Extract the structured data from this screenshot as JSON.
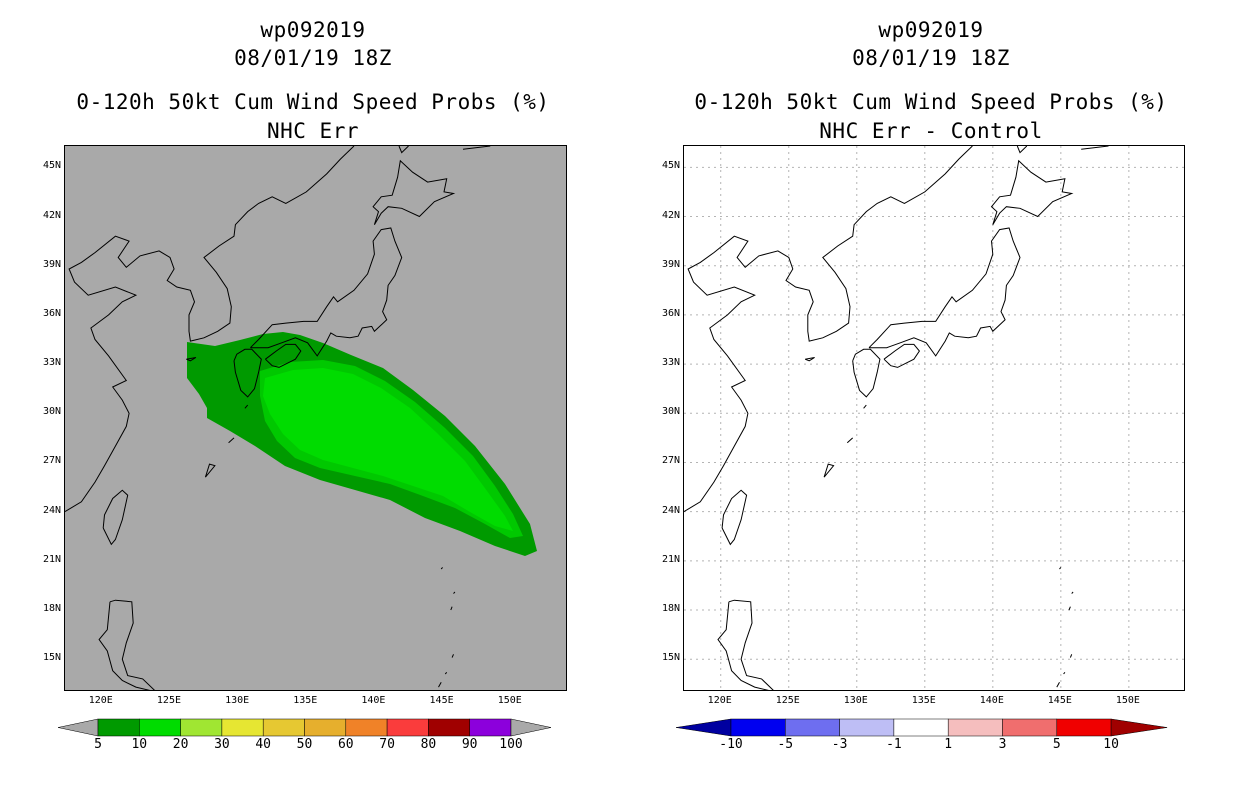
{
  "left_panel": {
    "title_line1": "wp092019",
    "title_line2": "08/01/19 18Z",
    "title_line3": "0-120h 50kt Cum Wind Speed Probs (%)",
    "title_line4": "NHC Err",
    "background_color": "#a9a9a9",
    "colorbar_labels": [
      "5",
      "10",
      "20",
      "30",
      "40",
      "50",
      "60",
      "70",
      "80",
      "90",
      "100"
    ],
    "colorbar_colors": [
      "#009a00",
      "#00dc00",
      "#a0e632",
      "#e6e632",
      "#e6c832",
      "#e6af2d",
      "#f08228",
      "#fa3c3c",
      "#a00000",
      "#8c00dc"
    ],
    "probability_bands": [
      "5-10%",
      "10-20%"
    ]
  },
  "right_panel": {
    "title_line1": "wp092019",
    "title_line2": "08/01/19 18Z",
    "title_line3": "0-120h 50kt Cum Wind Speed Probs (%)",
    "title_line4": "NHC Err - Control",
    "background_color": "#ffffff",
    "colorbar_labels": [
      "-10",
      "-5",
      "-3",
      "-1",
      "1",
      "3",
      "5",
      "10"
    ],
    "colorbar_colors": [
      "#0000a0",
      "#0000f0",
      "#6e6ef0",
      "#bebef5",
      "#ffffff",
      "#f5bebe",
      "#f06e6e",
      "#f00000",
      "#a00000"
    ]
  },
  "lat_labels": [
    "45N",
    "42N",
    "39N",
    "36N",
    "33N",
    "30N",
    "27N",
    "24N",
    "21N",
    "18N",
    "15N"
  ],
  "lon_labels": [
    "120E",
    "125E",
    "130E",
    "135E",
    "140E",
    "145E",
    "150E"
  ]
}
